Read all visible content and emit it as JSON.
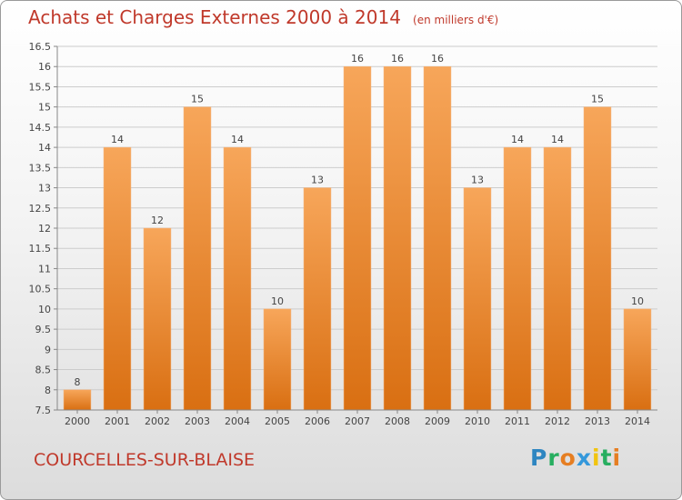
{
  "title": "Achats et Charges Externes 2000 à 2014",
  "unit_note": "(en milliers d'€)",
  "place_name": "COURCELLES-SUR-BLAISE",
  "logo_text": "Proxiti",
  "colors": {
    "title": "#c0392b",
    "bar_light": "#f7a65a",
    "bar_dark": "#d96f12",
    "grid": "#cccccc"
  },
  "chart_data": {
    "type": "bar",
    "title": "Achats et Charges Externes 2000 à 2014",
    "subtitle": "(en milliers d'€)",
    "xlabel": "",
    "ylabel": "",
    "ylim": [
      7.5,
      16.5
    ],
    "yticks": [
      7.5,
      8,
      8.5,
      9,
      9.5,
      10,
      10.5,
      11,
      11.5,
      12,
      12.5,
      13,
      13.5,
      14,
      14.5,
      15,
      15.5,
      16,
      16.5
    ],
    "grid": true,
    "categories": [
      "2000",
      "2001",
      "2002",
      "2003",
      "2004",
      "2005",
      "2006",
      "2007",
      "2008",
      "2009",
      "2010",
      "2011",
      "2012",
      "2013",
      "2014"
    ],
    "values": [
      8,
      14,
      12,
      15,
      14,
      10,
      13,
      16,
      16,
      16,
      13,
      14,
      14,
      15,
      10
    ]
  }
}
